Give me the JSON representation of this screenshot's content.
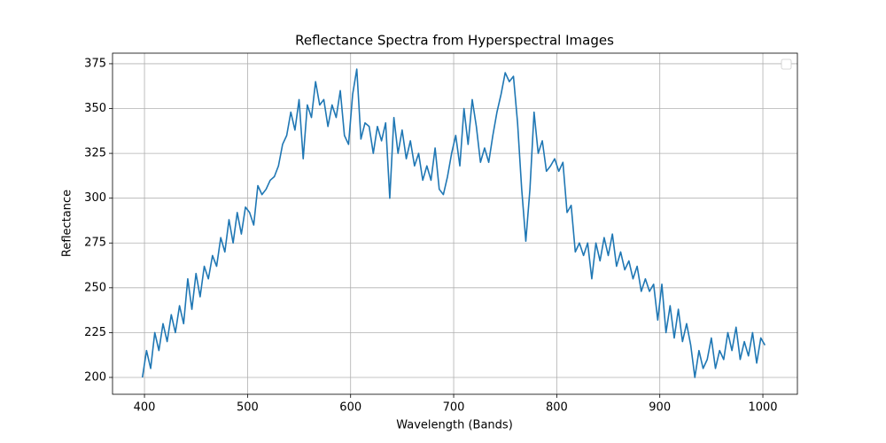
{
  "chart_data": {
    "type": "line",
    "title": "Reflectance Spectra from Hyperspectral Images",
    "x_label": "Wavelength (Bands)",
    "y_label": "Reflectance",
    "x": [
      398,
      402,
      406,
      410,
      414,
      418,
      422,
      426,
      430,
      434,
      438,
      442,
      446,
      450,
      454,
      458,
      462,
      466,
      470,
      474,
      478,
      482,
      486,
      490,
      494,
      498,
      502,
      506,
      510,
      514,
      518,
      522,
      526,
      530,
      534,
      538,
      542,
      546,
      550,
      554,
      558,
      562,
      566,
      570,
      574,
      578,
      582,
      586,
      590,
      594,
      598,
      602,
      606,
      610,
      614,
      618,
      622,
      626,
      630,
      634,
      638,
      642,
      646,
      650,
      654,
      658,
      662,
      666,
      670,
      674,
      678,
      682,
      686,
      690,
      694,
      698,
      702,
      706,
      710,
      714,
      718,
      722,
      726,
      730,
      734,
      738,
      742,
      746,
      750,
      754,
      758,
      762,
      766,
      770,
      774,
      778,
      782,
      786,
      790,
      794,
      798,
      802,
      806,
      810,
      814,
      818,
      822,
      826,
      830,
      834,
      838,
      842,
      846,
      850,
      854,
      858,
      862,
      866,
      870,
      874,
      878,
      882,
      886,
      890,
      894,
      898,
      902,
      906,
      910,
      914,
      918,
      922,
      926,
      930,
      934,
      938,
      942,
      946,
      950,
      954,
      958,
      962,
      966,
      970,
      974,
      978,
      982,
      986,
      990,
      994,
      998,
      1002
    ],
    "series": [
      {
        "color": "#1f77b4",
        "values": [
          200,
          215,
          205,
          225,
          215,
          230,
          220,
          235,
          225,
          240,
          230,
          255,
          238,
          258,
          245,
          262,
          255,
          268,
          262,
          278,
          270,
          288,
          275,
          292,
          280,
          295,
          292,
          285,
          307,
          302,
          305,
          310,
          312,
          318,
          330,
          335,
          348,
          338,
          355,
          322,
          352,
          345,
          365,
          352,
          355,
          340,
          352,
          345,
          360,
          335,
          330,
          358,
          372,
          333,
          342,
          340,
          325,
          340,
          332,
          342,
          300,
          345,
          325,
          338,
          322,
          332,
          318,
          325,
          310,
          318,
          310,
          328,
          305,
          302,
          312,
          325,
          335,
          318,
          350,
          330,
          355,
          340,
          320,
          328,
          320,
          335,
          348,
          358,
          370,
          365,
          368,
          342,
          305,
          276,
          305,
          348,
          325,
          332,
          315,
          318,
          322,
          315,
          320,
          292,
          296,
          270,
          275,
          268,
          275,
          255,
          275,
          265,
          278,
          268,
          280,
          262,
          270,
          260,
          265,
          255,
          262,
          248,
          255,
          248,
          252,
          232,
          252,
          225,
          240,
          222,
          238,
          220,
          230,
          218,
          200,
          215,
          205,
          210,
          222,
          205,
          215,
          210,
          225,
          215,
          228,
          210,
          220,
          212,
          225,
          208,
          222,
          218
        ]
      }
    ],
    "xlim": [
      369,
      1033.5
    ],
    "ylim": [
      190.6,
      380.9
    ],
    "xticks": [
      400,
      500,
      600,
      700,
      800,
      900,
      1000
    ],
    "yticks": [
      200,
      225,
      250,
      275,
      300,
      325,
      350,
      375
    ],
    "grid": true,
    "legend": "upper right"
  }
}
